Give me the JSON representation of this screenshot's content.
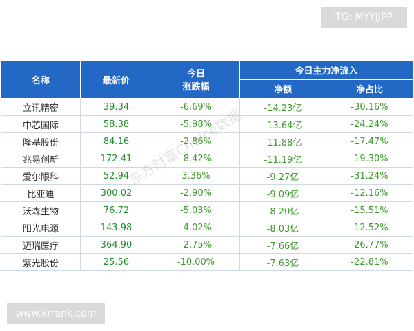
{
  "top_tag": "TG: MYYJJPP",
  "bottom_tag": "www.krrank.com",
  "watermark": "东方财富Choice数据",
  "headers": {
    "name": "名称",
    "price": "最新价",
    "change_line1": "今日",
    "change_line2": "涨跌幅",
    "inflow_group": "今日主力净流入",
    "net_amount": "净额",
    "net_ratio": "净占比"
  },
  "rows": [
    {
      "name": "立讯精密",
      "price": "39.34",
      "change": "-6.69%",
      "net": "-14.23亿",
      "ratio": "-30.16%"
    },
    {
      "name": "中芯国际",
      "price": "58.38",
      "change": "-5.98%",
      "net": "-13.64亿",
      "ratio": "-24.24%"
    },
    {
      "name": "隆基股份",
      "price": "84.16",
      "change": "-2.86%",
      "net": "-11.88亿",
      "ratio": "-17.47%"
    },
    {
      "name": "兆易创新",
      "price": "172.41",
      "change": "-8.42%",
      "net": "-11.19亿",
      "ratio": "-19.30%"
    },
    {
      "name": "爱尔眼科",
      "price": "52.94",
      "change": "3.36%",
      "net": "-9.27亿",
      "ratio": "-31.24%"
    },
    {
      "name": "比亚迪",
      "price": "300.02",
      "change": "-2.90%",
      "net": "-9.09亿",
      "ratio": "-12.16%"
    },
    {
      "name": "沃森生物",
      "price": "76.72",
      "change": "-5.03%",
      "net": "-8.20亿",
      "ratio": "-15.51%"
    },
    {
      "name": "阳光电源",
      "price": "143.98",
      "change": "-4.02%",
      "net": "-8.03亿",
      "ratio": "-12.52%"
    },
    {
      "name": "迈瑞医疗",
      "price": "364.90",
      "change": "-2.75%",
      "net": "-7.66亿",
      "ratio": "-26.77%"
    },
    {
      "name": "紫光股份",
      "price": "25.56",
      "change": "-10.00%",
      "net": "-7.63亿",
      "ratio": "-22.81%"
    }
  ],
  "colors": {
    "header_bg": "#2268c4",
    "negative": "#3f9a2e",
    "positive": "#e02020"
  }
}
